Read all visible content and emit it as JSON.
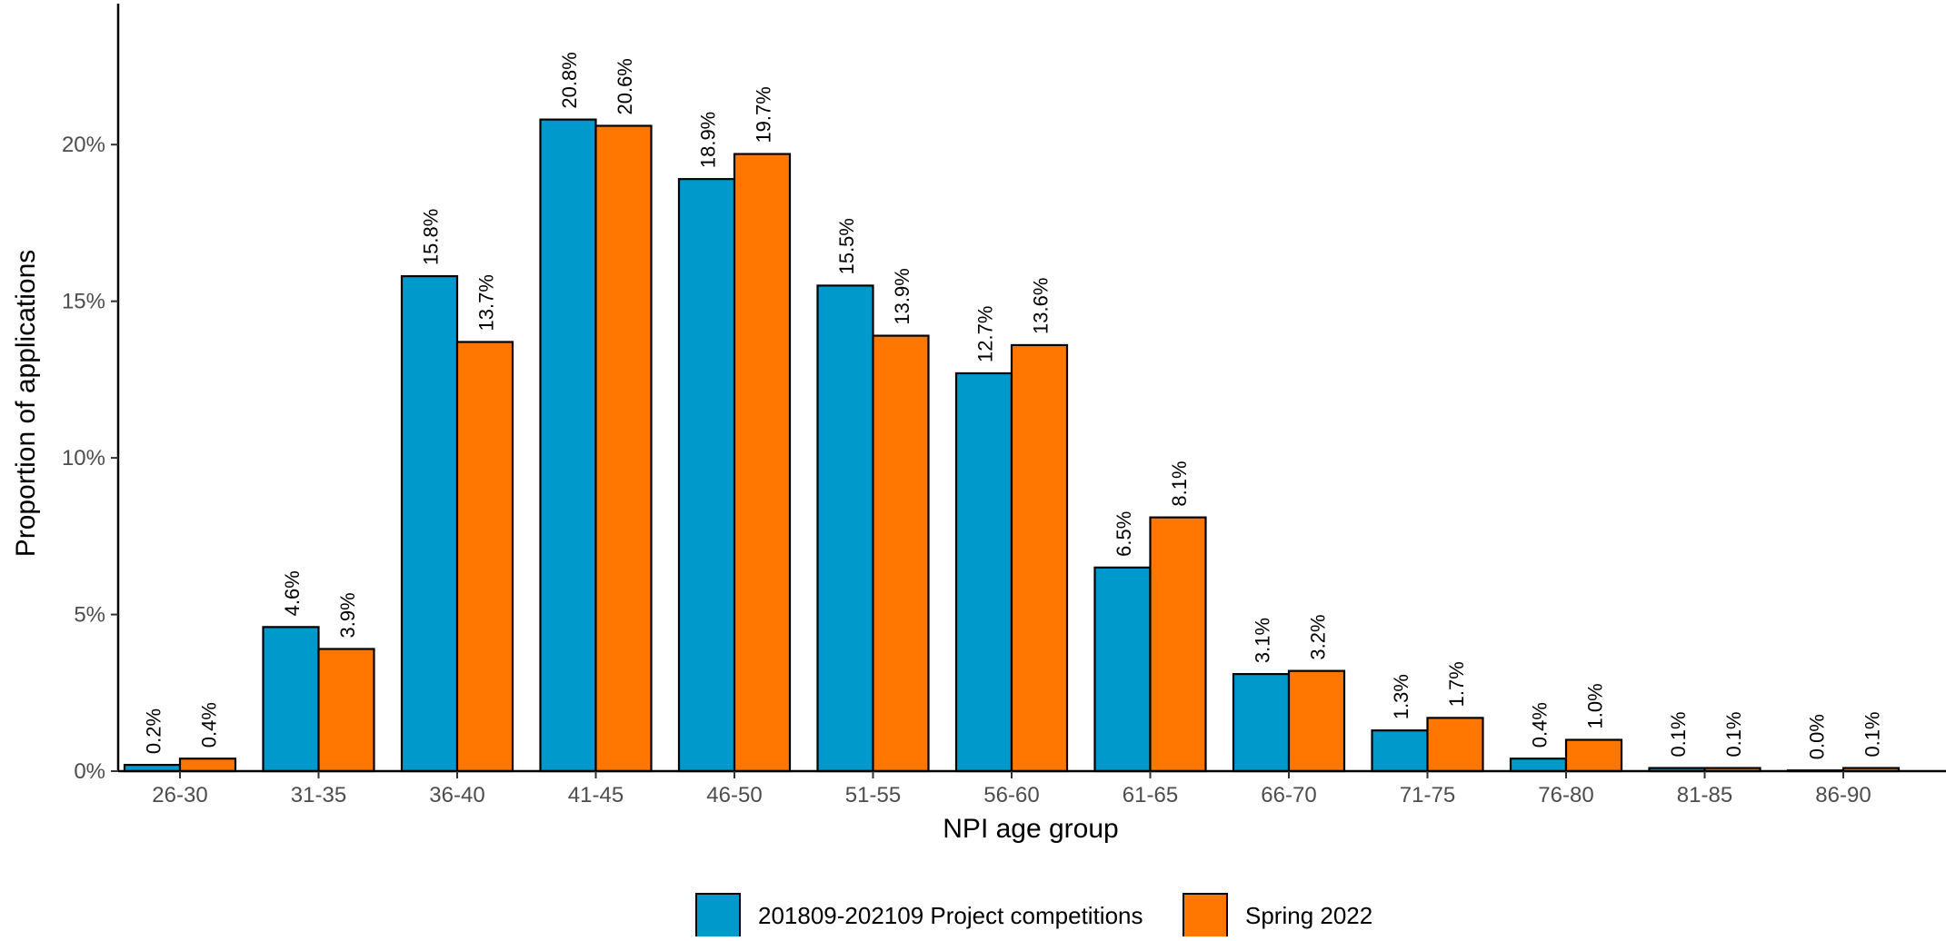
{
  "chart_data": {
    "type": "bar",
    "title": "",
    "xlabel": "NPI age group",
    "ylabel": "Proportion of applications",
    "ylim": [
      0,
      24.5
    ],
    "yticks": [
      0,
      5,
      10,
      15,
      20
    ],
    "ytick_labels": [
      "0%",
      "5%",
      "10%",
      "15%",
      "20%"
    ],
    "grid": false,
    "legend_position": "bottom",
    "categories": [
      "26-30",
      "31-35",
      "36-40",
      "41-45",
      "46-50",
      "51-55",
      "56-60",
      "61-65",
      "66-70",
      "71-75",
      "76-80",
      "81-85",
      "86-90"
    ],
    "series": [
      {
        "name": "201809-202109 Project competitions",
        "color": "#0099CC",
        "values": [
          0.2,
          4.6,
          15.8,
          20.8,
          18.9,
          15.5,
          12.7,
          6.5,
          3.1,
          1.3,
          0.4,
          0.1,
          0.0
        ],
        "labels": [
          "0.2%",
          "4.6%",
          "15.8%",
          "20.8%",
          "18.9%",
          "15.5%",
          "12.7%",
          "6.5%",
          "3.1%",
          "1.3%",
          "0.4%",
          "0.1%",
          "0.0%"
        ]
      },
      {
        "name": "Spring 2022",
        "color": "#FF7700",
        "values": [
          0.4,
          3.9,
          13.7,
          20.6,
          19.7,
          13.9,
          13.6,
          8.1,
          3.2,
          1.7,
          1.0,
          0.1,
          0.1
        ],
        "labels": [
          "0.4%",
          "3.9%",
          "13.7%",
          "20.6%",
          "19.7%",
          "13.9%",
          "13.6%",
          "8.1%",
          "3.2%",
          "1.7%",
          "1.0%",
          "0.1%",
          "0.1%"
        ]
      }
    ]
  }
}
